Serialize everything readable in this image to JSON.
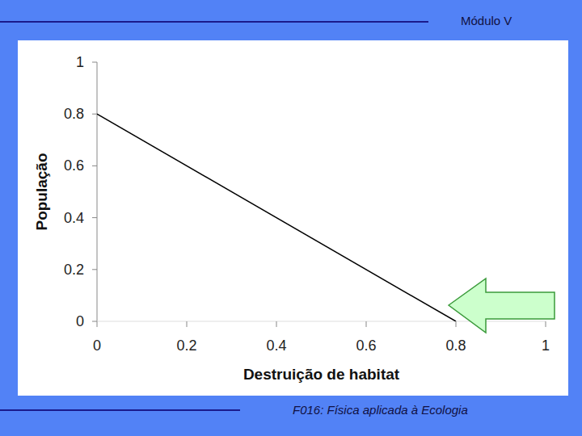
{
  "header": {
    "text": "Módulo V"
  },
  "footer": {
    "text": "F016: Física aplicada à Ecologia"
  },
  "chart_data": {
    "type": "line",
    "x": [
      0,
      0.8
    ],
    "values": [
      0.8,
      0
    ],
    "color": "#000000",
    "xlabel": "Destruição de habitat",
    "ylabel": "População",
    "xlim": [
      0,
      1
    ],
    "ylim": [
      0,
      1
    ],
    "xticks": [
      0,
      0.2,
      0.4,
      0.6,
      0.8,
      1
    ],
    "yticks": [
      0,
      0.2,
      0.4,
      0.6,
      0.8,
      1
    ],
    "grid": false
  }
}
